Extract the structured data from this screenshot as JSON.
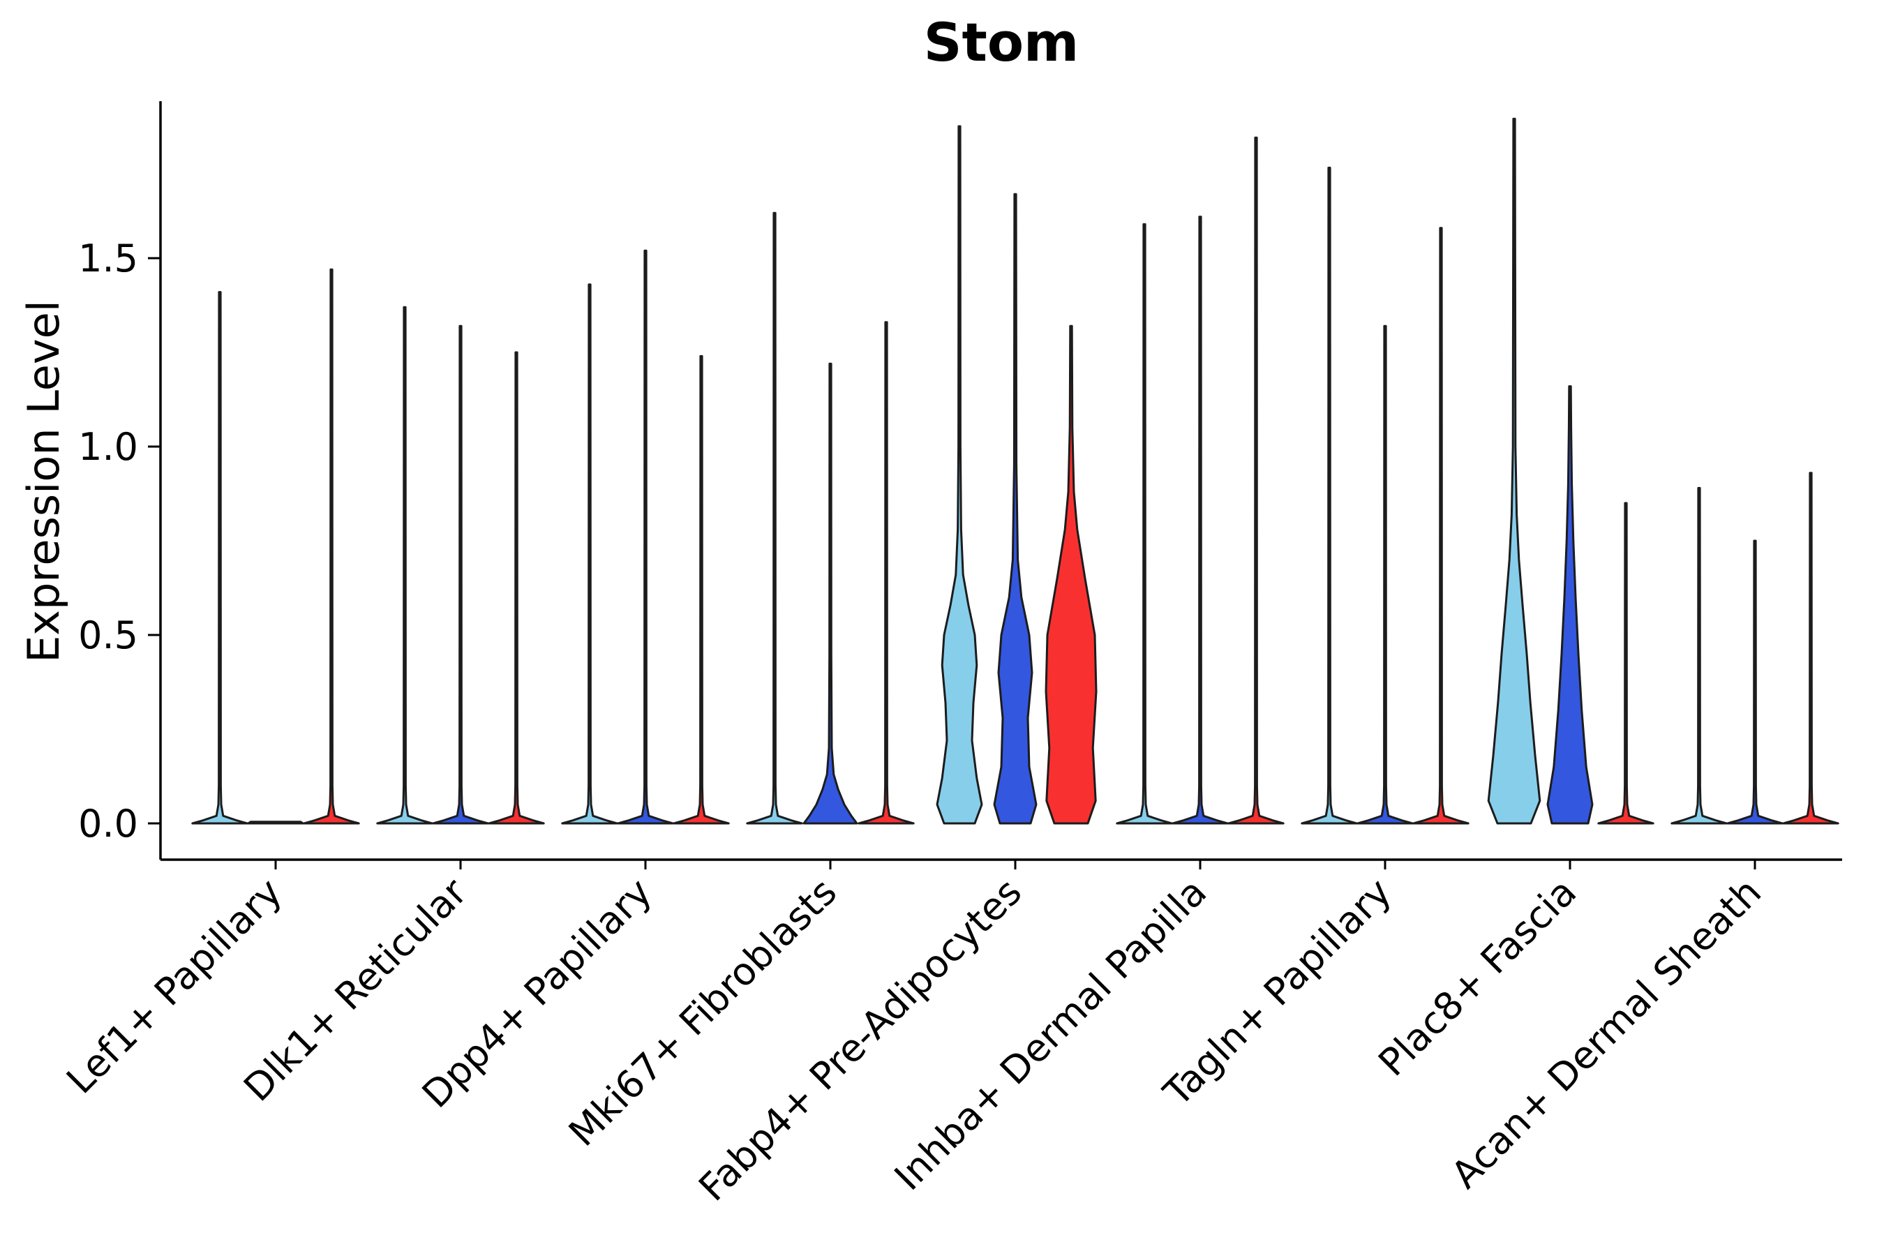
{
  "figure": {
    "background": "#ffffff"
  },
  "chart_data": {
    "type": "violin",
    "title": "Stom",
    "xlabel": "",
    "ylabel": "Expression Level",
    "legend": "none",
    "grid": false,
    "ylim": [
      -0.1,
      1.92
    ],
    "ytick_values": [
      0,
      0.5,
      1.0,
      1.5
    ],
    "ytick_labels": [
      "0.0",
      "0.5",
      "1.0",
      "1.5"
    ],
    "categories": [
      "Lef1+ Papillary",
      "Dlk1+ Reticular",
      "Dpp4+ Papillary",
      "Mki67+ Fibroblasts",
      "Fabp4+ Pre-Adipocytes",
      "Inhba+ Dermal Papilla",
      "Tagln+ Papillary",
      "Plac8+ Fascia",
      "Acan+ Dermal Sheath"
    ],
    "series_colors": [
      "#87CEEB",
      "#3357DF",
      "#F93030"
    ],
    "edge_color": "#1c1c1c",
    "groups": [
      {
        "category": "Lef1+ Papillary",
        "violins": [
          {
            "max": 1.41
          },
          {
            "max": 0.0
          },
          {
            "max": 1.47
          }
        ]
      },
      {
        "category": "Dlk1+ Reticular",
        "violins": [
          {
            "max": 1.37
          },
          {
            "max": 1.32
          },
          {
            "max": 1.25
          }
        ]
      },
      {
        "category": "Dpp4+ Papillary",
        "violins": [
          {
            "max": 1.43
          },
          {
            "max": 1.52
          },
          {
            "max": 1.24
          }
        ]
      },
      {
        "category": "Mki67+ Fibroblasts",
        "violins": [
          {
            "max": 1.62
          },
          {
            "max": 1.22,
            "profile": [
              [
                0,
                0.95
              ],
              [
                0.02,
                0.75
              ],
              [
                0.05,
                0.5
              ],
              [
                0.09,
                0.28
              ],
              [
                0.13,
                0.12
              ],
              [
                0.2,
                0.05
              ],
              [
                0.45,
                0.032
              ],
              [
                1.22,
                0.028
              ]
            ]
          },
          {
            "max": 1.33
          }
        ]
      },
      {
        "category": "Fabp4+ Pre-Adipocytes",
        "violins": [
          {
            "max": 1.85,
            "profile": [
              [
                0,
                0.55
              ],
              [
                0.05,
                0.8
              ],
              [
                0.12,
                0.62
              ],
              [
                0.22,
                0.45
              ],
              [
                0.32,
                0.5
              ],
              [
                0.42,
                0.62
              ],
              [
                0.5,
                0.55
              ],
              [
                0.58,
                0.32
              ],
              [
                0.66,
                0.13
              ],
              [
                0.78,
                0.06
              ],
              [
                1.0,
                0.035
              ],
              [
                1.85,
                0.028
              ]
            ]
          },
          {
            "max": 1.67,
            "profile": [
              [
                0,
                0.55
              ],
              [
                0.05,
                0.75
              ],
              [
                0.15,
                0.5
              ],
              [
                0.28,
                0.45
              ],
              [
                0.4,
                0.6
              ],
              [
                0.5,
                0.5
              ],
              [
                0.6,
                0.22
              ],
              [
                0.7,
                0.09
              ],
              [
                0.95,
                0.04
              ],
              [
                1.67,
                0.028
              ]
            ]
          },
          {
            "max": 1.32,
            "profile": [
              [
                0,
                0.6
              ],
              [
                0.06,
                0.88
              ],
              [
                0.2,
                0.78
              ],
              [
                0.35,
                0.9
              ],
              [
                0.5,
                0.85
              ],
              [
                0.65,
                0.5
              ],
              [
                0.78,
                0.22
              ],
              [
                0.88,
                0.1
              ],
              [
                1.05,
                0.045
              ],
              [
                1.32,
                0.03
              ]
            ]
          }
        ]
      },
      {
        "category": "Inhba+ Dermal Papilla",
        "violins": [
          {
            "max": 1.59
          },
          {
            "max": 1.61
          },
          {
            "max": 1.82
          }
        ]
      },
      {
        "category": "Tagln+ Papillary",
        "violins": [
          {
            "max": 1.74
          },
          {
            "max": 1.32
          },
          {
            "max": 1.58
          }
        ]
      },
      {
        "category": "Plac8+ Fascia",
        "violins": [
          {
            "max": 1.87,
            "profile": [
              [
                0,
                0.6
              ],
              [
                0.06,
                0.92
              ],
              [
                0.18,
                0.75
              ],
              [
                0.32,
                0.58
              ],
              [
                0.45,
                0.45
              ],
              [
                0.58,
                0.3
              ],
              [
                0.7,
                0.17
              ],
              [
                0.82,
                0.09
              ],
              [
                1.0,
                0.045
              ],
              [
                1.87,
                0.028
              ]
            ]
          },
          {
            "max": 1.16,
            "profile": [
              [
                0,
                0.65
              ],
              [
                0.05,
                0.8
              ],
              [
                0.15,
                0.58
              ],
              [
                0.3,
                0.42
              ],
              [
                0.45,
                0.3
              ],
              [
                0.6,
                0.2
              ],
              [
                0.75,
                0.12
              ],
              [
                0.9,
                0.065
              ],
              [
                1.05,
                0.04
              ],
              [
                1.16,
                0.03
              ]
            ]
          },
          {
            "max": 0.85
          }
        ]
      },
      {
        "category": "Acan+ Dermal Sheath",
        "violins": [
          {
            "max": 0.89
          },
          {
            "max": 0.75
          },
          {
            "max": 0.93
          }
        ]
      }
    ]
  }
}
